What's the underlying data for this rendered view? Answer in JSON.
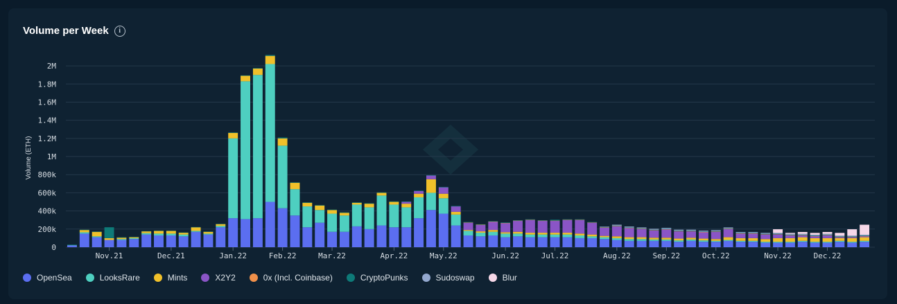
{
  "title": "Volume per Week",
  "info_icon": "info-icon",
  "chart_data": {
    "type": "bar",
    "stacked": true,
    "title": "Volume per Week",
    "xlabel": "",
    "ylabel": "Volume (ETH)",
    "ylim": [
      0,
      2100000
    ],
    "yticks": [
      0,
      200000,
      400000,
      600000,
      800000,
      1000000,
      1200000,
      1400000,
      1600000,
      1800000,
      2000000
    ],
    "ytick_labels": [
      "0",
      "200k",
      "400k",
      "600k",
      "800k",
      "1M",
      "1.2M",
      "1.4M",
      "1.6M",
      "1.8M",
      "2M"
    ],
    "month_ticks": [
      {
        "index": 3,
        "label": "Nov.21"
      },
      {
        "index": 8,
        "label": "Dec.21"
      },
      {
        "index": 13,
        "label": "Jan.22"
      },
      {
        "index": 17,
        "label": "Feb.22"
      },
      {
        "index": 21,
        "label": "Mar.22"
      },
      {
        "index": 26,
        "label": "Apr.22"
      },
      {
        "index": 30,
        "label": "May.22"
      },
      {
        "index": 35,
        "label": "Jun.22"
      },
      {
        "index": 39,
        "label": "Jul.22"
      },
      {
        "index": 44,
        "label": "Aug.22"
      },
      {
        "index": 48,
        "label": "Sep.22"
      },
      {
        "index": 52,
        "label": "Oct.22"
      },
      {
        "index": 57,
        "label": "Nov.22"
      },
      {
        "index": 61,
        "label": "Dec.22"
      }
    ],
    "series": [
      {
        "name": "OpenSea",
        "color": "#5b6ef0",
        "values": [
          20000,
          150000,
          110000,
          80000,
          80000,
          90000,
          140000,
          130000,
          130000,
          120000,
          170000,
          140000,
          220000,
          320000,
          310000,
          320000,
          500000,
          430000,
          350000,
          220000,
          270000,
          170000,
          170000,
          230000,
          200000,
          240000,
          220000,
          220000,
          320000,
          410000,
          370000,
          240000,
          130000,
          120000,
          130000,
          110000,
          120000,
          110000,
          110000,
          110000,
          110000,
          100000,
          100000,
          90000,
          80000,
          70000,
          70000,
          70000,
          70000,
          60000,
          70000,
          60000,
          60000,
          70000,
          60000,
          60000,
          50000,
          50000,
          50000,
          60000,
          50000,
          50000,
          60000,
          50000,
          60000
        ]
      },
      {
        "name": "LooksRare",
        "color": "#4ecfc0",
        "values": [
          5000,
          15000,
          10000,
          0,
          10000,
          10000,
          15000,
          20000,
          20000,
          20000,
          10000,
          10000,
          15000,
          880000,
          1520000,
          1580000,
          1520000,
          690000,
          290000,
          230000,
          140000,
          200000,
          180000,
          240000,
          240000,
          330000,
          250000,
          220000,
          230000,
          190000,
          170000,
          120000,
          50000,
          40000,
          40000,
          40000,
          30000,
          30000,
          30000,
          30000,
          30000,
          30000,
          20000,
          20000,
          20000,
          20000,
          20000,
          15000,
          15000,
          15000,
          15000,
          15000,
          10000,
          10000,
          10000,
          10000,
          10000,
          10000,
          10000,
          10000,
          10000,
          10000,
          10000,
          10000,
          10000
        ]
      },
      {
        "name": "Mints",
        "color": "#f0c02a",
        "values": [
          0,
          25000,
          50000,
          20000,
          15000,
          10000,
          20000,
          30000,
          30000,
          20000,
          40000,
          20000,
          20000,
          60000,
          60000,
          70000,
          90000,
          80000,
          70000,
          40000,
          50000,
          40000,
          30000,
          20000,
          40000,
          30000,
          30000,
          40000,
          40000,
          150000,
          50000,
          30000,
          10000,
          15000,
          20000,
          15000,
          20000,
          20000,
          20000,
          20000,
          20000,
          20000,
          20000,
          15000,
          20000,
          20000,
          20000,
          20000,
          20000,
          20000,
          20000,
          20000,
          20000,
          30000,
          30000,
          30000,
          30000,
          40000,
          40000,
          40000,
          40000,
          40000,
          30000,
          40000,
          40000
        ]
      },
      {
        "name": "X2Y2",
        "color": "#8a55c6",
        "values": [
          0,
          0,
          0,
          0,
          0,
          0,
          0,
          0,
          0,
          0,
          0,
          0,
          0,
          0,
          0,
          0,
          0,
          0,
          0,
          0,
          0,
          0,
          0,
          0,
          0,
          0,
          0,
          20000,
          30000,
          40000,
          70000,
          60000,
          80000,
          70000,
          90000,
          100000,
          120000,
          140000,
          130000,
          130000,
          140000,
          150000,
          130000,
          90000,
          110000,
          100000,
          90000,
          80000,
          90000,
          80000,
          70000,
          70000,
          80000,
          90000,
          50000,
          50000,
          50000,
          40000,
          30000,
          20000,
          20000,
          30000,
          10000,
          10000,
          10000
        ]
      },
      {
        "name": "0x (Incl. Coinbase)",
        "color": "#f0904a",
        "values": [
          0,
          0,
          0,
          0,
          0,
          0,
          0,
          0,
          0,
          0,
          0,
          0,
          0,
          0,
          0,
          0,
          0,
          0,
          0,
          0,
          0,
          0,
          0,
          0,
          0,
          0,
          0,
          0,
          0,
          0,
          0,
          0,
          3000,
          3000,
          3000,
          3000,
          3000,
          3000,
          3000,
          3000,
          3000,
          3000,
          3000,
          3000,
          3000,
          3000,
          3000,
          3000,
          3000,
          3000,
          3000,
          3000,
          3000,
          3000,
          3000,
          3000,
          3000,
          3000,
          3000,
          3000,
          3000,
          3000,
          3000,
          3000,
          3000
        ]
      },
      {
        "name": "CryptoPunks",
        "color": "#0e7a78",
        "values": [
          3000,
          3000,
          3000,
          120000,
          5000,
          5000,
          3000,
          3000,
          3000,
          3000,
          3000,
          3000,
          3000,
          5000,
          5000,
          5000,
          10000,
          10000,
          5000,
          5000,
          5000,
          5000,
          5000,
          5000,
          5000,
          5000,
          5000,
          5000,
          5000,
          5000,
          5000,
          5000,
          5000,
          5000,
          5000,
          5000,
          5000,
          5000,
          5000,
          10000,
          5000,
          5000,
          5000,
          5000,
          5000,
          5000,
          5000,
          5000,
          5000,
          5000,
          5000,
          5000,
          5000,
          5000,
          5000,
          5000,
          5000,
          5000,
          5000,
          5000,
          5000,
          5000,
          5000,
          5000,
          5000
        ]
      },
      {
        "name": "Sudoswap",
        "color": "#93a8cf",
        "values": [
          0,
          0,
          0,
          0,
          0,
          0,
          0,
          0,
          0,
          0,
          0,
          0,
          0,
          0,
          0,
          0,
          0,
          0,
          0,
          0,
          0,
          0,
          0,
          0,
          0,
          0,
          0,
          0,
          0,
          0,
          0,
          0,
          0,
          0,
          0,
          0,
          0,
          0,
          0,
          0,
          0,
          0,
          0,
          5000,
          10000,
          10000,
          10000,
          10000,
          10000,
          10000,
          10000,
          10000,
          10000,
          10000,
          10000,
          10000,
          10000,
          10000,
          10000,
          10000,
          10000,
          10000,
          10000,
          10000,
          10000
        ]
      },
      {
        "name": "Blur",
        "color": "#f6d8e8",
        "values": [
          0,
          0,
          0,
          0,
          0,
          0,
          0,
          0,
          0,
          0,
          0,
          0,
          0,
          0,
          0,
          0,
          0,
          0,
          0,
          0,
          0,
          0,
          0,
          0,
          0,
          0,
          0,
          0,
          0,
          0,
          0,
          0,
          0,
          0,
          0,
          0,
          0,
          0,
          0,
          0,
          0,
          0,
          0,
          0,
          0,
          0,
          0,
          0,
          0,
          0,
          0,
          0,
          0,
          0,
          0,
          0,
          0,
          40000,
          10000,
          20000,
          20000,
          20000,
          30000,
          70000,
          110000
        ]
      }
    ]
  },
  "legend": [
    {
      "label": "OpenSea",
      "color": "#5b6ef0"
    },
    {
      "label": "LooksRare",
      "color": "#4ecfc0"
    },
    {
      "label": "Mints",
      "color": "#f0c02a"
    },
    {
      "label": "X2Y2",
      "color": "#8a55c6"
    },
    {
      "label": "0x (Incl. Coinbase)",
      "color": "#f0904a"
    },
    {
      "label": "CryptoPunks",
      "color": "#0e7a78"
    },
    {
      "label": "Sudoswap",
      "color": "#93a8cf"
    },
    {
      "label": "Blur",
      "color": "#f6d8e8"
    }
  ],
  "watermark_icon": "diamond-logo-icon",
  "colors": {
    "background": "#0a1b2a",
    "card": "#0f2232",
    "grid": "#24384a"
  }
}
